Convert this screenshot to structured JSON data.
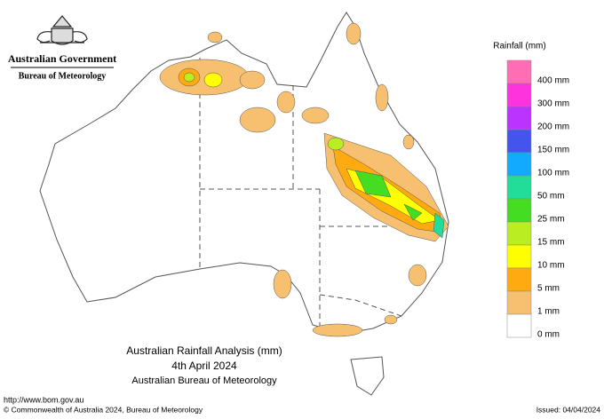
{
  "header": {
    "government": "Australian Government",
    "agency": "Bureau of Meteorology"
  },
  "legend": {
    "title": "Rainfall (mm)",
    "items": [
      {
        "label": "400 mm",
        "color": "#ff6eb4"
      },
      {
        "label": "300 mm",
        "color": "#ff33dd"
      },
      {
        "label": "200 mm",
        "color": "#bb33ff"
      },
      {
        "label": "150 mm",
        "color": "#4455ee"
      },
      {
        "label": "100 mm",
        "color": "#11aaff"
      },
      {
        "label": "50 mm",
        "color": "#22dd99"
      },
      {
        "label": "25 mm",
        "color": "#44dd22"
      },
      {
        "label": "15 mm",
        "color": "#bbee22"
      },
      {
        "label": "10 mm",
        "color": "#ffff00"
      },
      {
        "label": "5 mm",
        "color": "#ffaa11"
      },
      {
        "label": "1 mm",
        "color": "#f7c070"
      },
      {
        "label": "0 mm",
        "color": "#ffffff"
      }
    ]
  },
  "caption": {
    "title": "Australian Rainfall Analysis (mm)",
    "date": "4th April 2024",
    "source": "Australian Bureau of Meteorology"
  },
  "footer": {
    "url": "http://www.bom.gov.au",
    "copyright": "© Commonwealth of Australia 2024, Bureau of Meteorology",
    "issued": "Issued: 04/04/2024"
  }
}
